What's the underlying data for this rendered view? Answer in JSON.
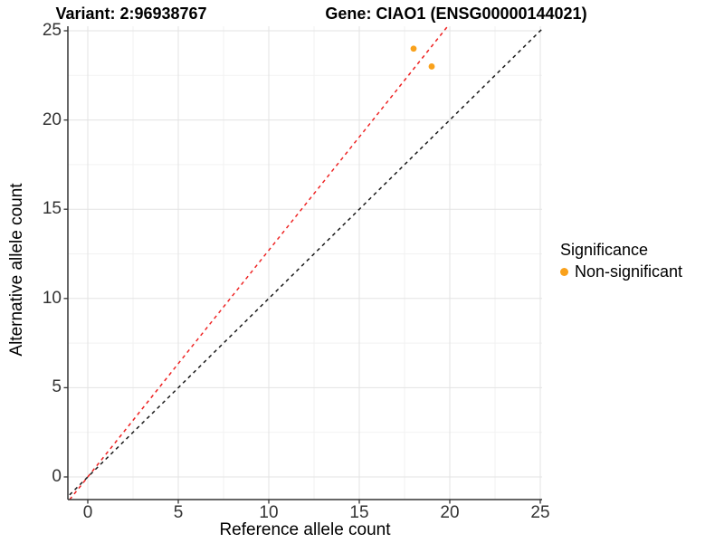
{
  "header": {
    "variant_title": "Variant: 2:96938767",
    "gene_title": "Gene: CIAO1 (ENSG00000144021)"
  },
  "chart_data": {
    "type": "scatter",
    "title_left": "Variant: 2:96938767",
    "title_right": "Gene: CIAO1 (ENSG00000144021)",
    "xlabel": "Reference allele count",
    "ylabel": "Alternative allele count",
    "xlim": [
      -1.1,
      25.1
    ],
    "ylim": [
      -1.3,
      25.3
    ],
    "x_ticks": [
      0,
      5,
      10,
      15,
      20,
      25
    ],
    "y_ticks": [
      0,
      5,
      10,
      15,
      20,
      25
    ],
    "x_tick_labels": [
      "0",
      "5",
      "10",
      "15",
      "20",
      "25"
    ],
    "y_tick_labels": [
      "0",
      "5",
      "10",
      "15",
      "20",
      "25"
    ],
    "grid": {
      "major": true,
      "minor": true,
      "major_color": "#E3E3E3",
      "minor_color": "#F2F2F2"
    },
    "points": [
      {
        "x": 18,
        "y": 24,
        "series": "Non-significant"
      },
      {
        "x": 19,
        "y": 23,
        "series": "Non-significant"
      }
    ],
    "point_color": "#F9A11B",
    "point_radius": 3.4,
    "reference_lines": [
      {
        "name": "observed-ratio-line",
        "slope": 1.27,
        "intercept": 0,
        "color": "#EE2222",
        "dash": "4 4"
      },
      {
        "name": "identity-line",
        "slope": 1,
        "intercept": 0,
        "color": "#1A1A1A",
        "dash": "4 4"
      }
    ],
    "axis_color": "#333333",
    "legend": {
      "title": "Significance",
      "position": "right",
      "items": [
        {
          "label": "Non-significant",
          "color": "#F9A11B"
        }
      ]
    }
  }
}
